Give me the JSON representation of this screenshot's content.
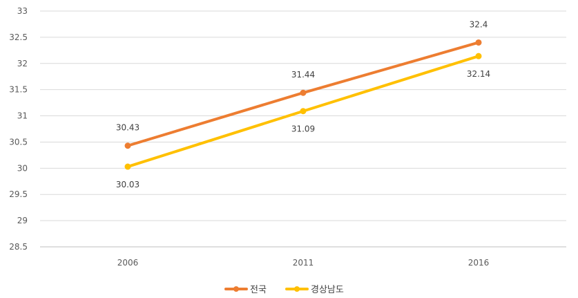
{
  "chart_data": {
    "type": "line",
    "categories": [
      "2006",
      "2011",
      "2016"
    ],
    "series": [
      {
        "name": "전국",
        "values": [
          30.43,
          31.44,
          32.4
        ],
        "color": "#ED7D31",
        "label_position": "above"
      },
      {
        "name": "경상남도",
        "values": [
          30.03,
          31.09,
          32.14
        ],
        "color": "#FFC000",
        "label_position": "below"
      }
    ],
    "title": "",
    "xlabel": "",
    "ylabel": "",
    "ylim": [
      28.5,
      33
    ],
    "yticks": [
      "28.5",
      "29",
      "29.5",
      "30",
      "30.5",
      "31",
      "31.5",
      "32",
      "32.5",
      "33"
    ],
    "grid": true,
    "legend": "bottom"
  }
}
